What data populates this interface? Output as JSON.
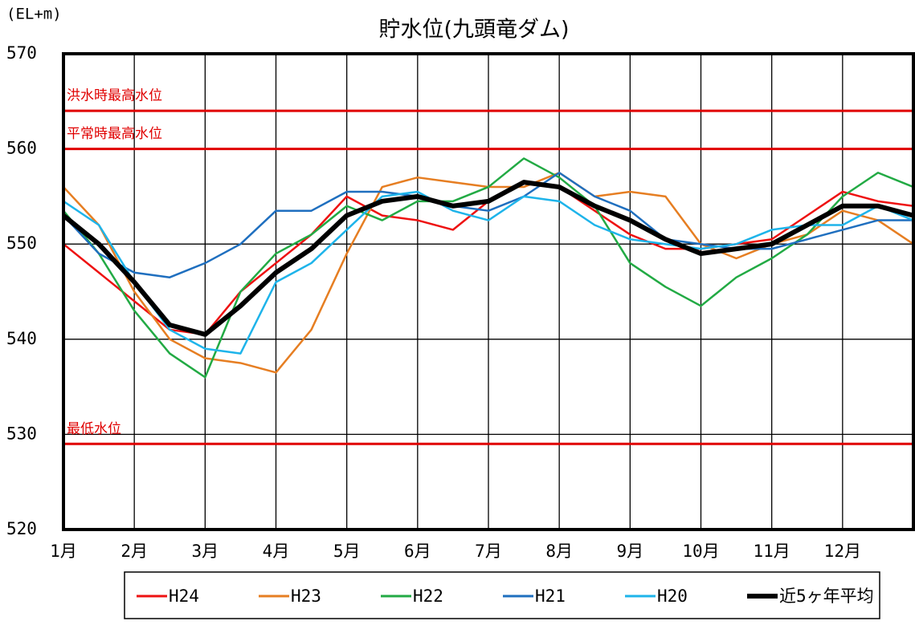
{
  "chart_data": {
    "type": "line",
    "title": "貯水位(九頭竜ダム)",
    "y_label": "(EL+m)",
    "x": [
      1,
      1.5,
      2,
      2.5,
      3,
      3.5,
      4,
      4.5,
      5,
      5.5,
      6,
      6.5,
      7,
      7.5,
      8,
      8.5,
      9,
      9.5,
      10,
      10.5,
      11,
      11.5,
      12,
      12.5,
      13
    ],
    "xlim": [
      1,
      13
    ],
    "xticks": [
      {
        "value": 1,
        "label": "1月"
      },
      {
        "value": 2,
        "label": "2月"
      },
      {
        "value": 3,
        "label": "3月"
      },
      {
        "value": 4,
        "label": "4月"
      },
      {
        "value": 5,
        "label": "5月"
      },
      {
        "value": 6,
        "label": "6月"
      },
      {
        "value": 7,
        "label": "7月"
      },
      {
        "value": 8,
        "label": "8月"
      },
      {
        "value": 9,
        "label": "9月"
      },
      {
        "value": 10,
        "label": "10月"
      },
      {
        "value": 11,
        "label": "11月"
      },
      {
        "value": 12,
        "label": "12月"
      }
    ],
    "ylim": [
      520,
      570
    ],
    "yticks": [
      520,
      530,
      540,
      550,
      560,
      570
    ],
    "grid": true,
    "legend": "bottom",
    "annotations": [
      {
        "label": "洪水時最高水位",
        "value": 564,
        "color": "#e00000"
      },
      {
        "label": "平常時最高水位",
        "value": 560,
        "color": "#e00000"
      },
      {
        "label": "最低水位",
        "value": 529,
        "color": "#e00000"
      }
    ],
    "series": [
      {
        "name": "H24",
        "color": "#ee1111",
        "values": [
          550,
          547,
          544,
          541,
          540.5,
          545,
          548,
          551,
          555,
          553,
          552.5,
          551.5,
          554.5,
          556.5,
          556,
          553.5,
          551,
          549.5,
          549.5,
          550,
          550.5,
          553,
          555.5,
          554.5,
          554
        ]
      },
      {
        "name": "H23",
        "color": "#e67e22",
        "values": [
          556,
          552,
          545,
          540,
          538,
          537.5,
          536.5,
          541,
          549,
          556,
          557,
          556.5,
          556,
          556,
          557.5,
          555,
          555.5,
          555,
          550,
          548.5,
          550,
          551,
          553.5,
          552.5,
          550
        ]
      },
      {
        "name": "H22",
        "color": "#22aa44",
        "values": [
          553.5,
          549,
          543,
          538.5,
          536,
          545,
          549,
          551,
          554,
          552.5,
          554.5,
          554.5,
          556,
          559,
          557,
          554,
          548,
          545.5,
          543.5,
          546.5,
          548.5,
          551,
          555,
          557.5,
          556
        ]
      },
      {
        "name": "H21",
        "color": "#1f6fbf",
        "values": [
          553,
          549,
          547,
          546.5,
          548,
          550,
          553.5,
          553.5,
          555.5,
          555.5,
          555,
          554,
          553.5,
          555,
          557.5,
          555,
          553.5,
          550.5,
          550,
          549.5,
          549.5,
          550.5,
          551.5,
          552.5,
          552.5
        ]
      },
      {
        "name": "H20",
        "color": "#1eb4ea",
        "values": [
          554.5,
          552,
          546,
          541,
          539,
          538.5,
          546,
          548,
          551.5,
          555,
          555.5,
          553.5,
          552.5,
          555,
          554.5,
          552,
          550.5,
          550,
          549.5,
          550,
          551.5,
          552,
          552,
          554,
          552.5
        ]
      },
      {
        "name": "近5ヶ年平均",
        "color": "#000000",
        "values": [
          553,
          550,
          546,
          541.5,
          540.5,
          543.5,
          547,
          549.5,
          553,
          554.5,
          555,
          554,
          554.5,
          556.5,
          556,
          554,
          552.5,
          550.5,
          549,
          549.5,
          550,
          552,
          554,
          554,
          553
        ]
      }
    ]
  }
}
